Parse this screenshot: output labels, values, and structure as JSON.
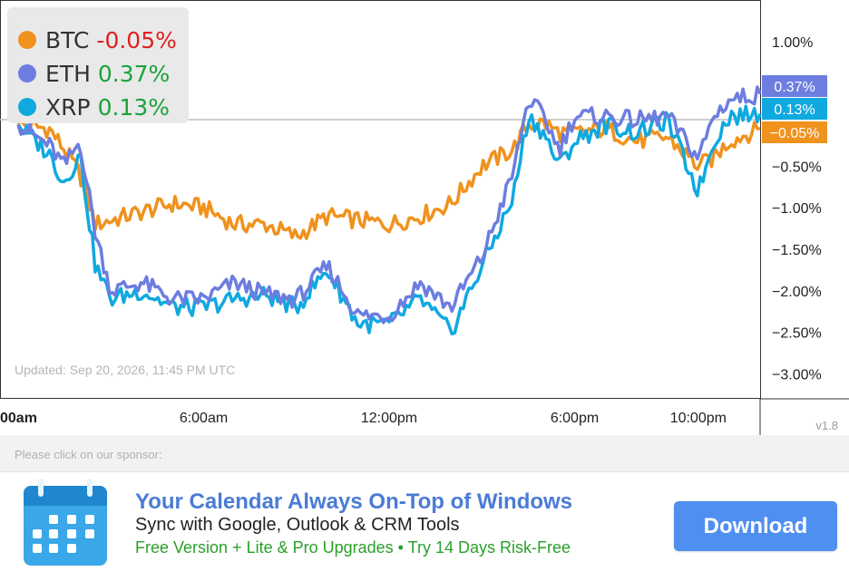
{
  "chart_data": {
    "type": "line",
    "x_ticks": [
      "00am",
      "6:00am",
      "12:00pm",
      "6:00pm",
      "10:00pm"
    ],
    "y_ticks": [
      "1.00%",
      "0.50%",
      "0.00%",
      "−0.50%",
      "−1.00%",
      "−1.50%",
      "−2.00%",
      "−2.50%",
      "−3.00%"
    ],
    "ylim": [
      -3.3,
      1.5
    ],
    "x_hours": [
      0,
      1,
      1.5,
      2,
      2.5,
      3,
      4,
      5,
      6,
      7,
      8,
      9,
      10,
      11,
      12,
      13,
      14,
      15,
      16,
      16.5,
      17,
      17.5,
      18,
      19,
      20,
      21,
      22,
      22.5,
      23,
      24
    ],
    "x_tick_hours": [
      0,
      6,
      12,
      18,
      22
    ],
    "series": [
      {
        "name": "BTC",
        "color": "#f0921e",
        "last_label": "−0.05%",
        "values": [
          0,
          -0.05,
          -0.3,
          -0.6,
          -1.2,
          -1.15,
          -1.05,
          -0.95,
          -1.0,
          -1.2,
          -1.2,
          -1.35,
          -1.1,
          -1.15,
          -1.2,
          -1.1,
          -0.95,
          -0.5,
          -0.3,
          0,
          0.02,
          -0.1,
          -0.1,
          -0.05,
          -0.2,
          -0.15,
          -0.5,
          -0.4,
          -0.2,
          -0.05
        ]
      },
      {
        "name": "ETH",
        "color": "#6d7de0",
        "last_label": "0.37%",
        "values": [
          0,
          -0.25,
          -0.5,
          -0.2,
          -1.3,
          -2.0,
          -1.9,
          -2.1,
          -2.1,
          -1.9,
          -2.05,
          -2.1,
          -1.7,
          -2.3,
          -2.3,
          -1.9,
          -2.2,
          -1.6,
          -0.6,
          0.3,
          0.1,
          -0.3,
          0.1,
          0.1,
          0.05,
          0.1,
          -0.4,
          0.1,
          0.3,
          0.37
        ]
      },
      {
        "name": "XRP",
        "color": "#0fa9e0",
        "last_label": "0.13%",
        "values": [
          0,
          -0.35,
          -0.7,
          -0.35,
          -1.7,
          -2.1,
          -2.0,
          -2.2,
          -2.2,
          -2.1,
          -2.05,
          -2.2,
          -1.75,
          -2.4,
          -2.4,
          -2.1,
          -2.5,
          -1.7,
          -0.9,
          0.1,
          -0.1,
          -0.5,
          -0.2,
          0.0,
          -0.1,
          0.05,
          -0.8,
          -0.2,
          0.1,
          0.13
        ]
      }
    ]
  },
  "legend": [
    {
      "name": "BTC",
      "value": "-0.05%",
      "color": "#f0921e",
      "sign": "neg"
    },
    {
      "name": "ETH",
      "value": "0.37%",
      "color": "#6d7de0",
      "sign": "pos"
    },
    {
      "name": "XRP",
      "value": "0.13%",
      "color": "#0fa9e0",
      "sign": "pos"
    }
  ],
  "updated": "Updated: Sep 20, 2026, 11:45 PM UTC",
  "version": "v1.8",
  "sponsor": {
    "label": "Please click on our sponsor:",
    "icon": "calendar-icon",
    "title": "Your Calendar Always On-Top of Windows",
    "subtitle": "Sync with Google, Outlook & CRM Tools",
    "note": "Free Version + Lite & Pro Upgrades • Try 14 Days Risk-Free",
    "button": "Download"
  }
}
